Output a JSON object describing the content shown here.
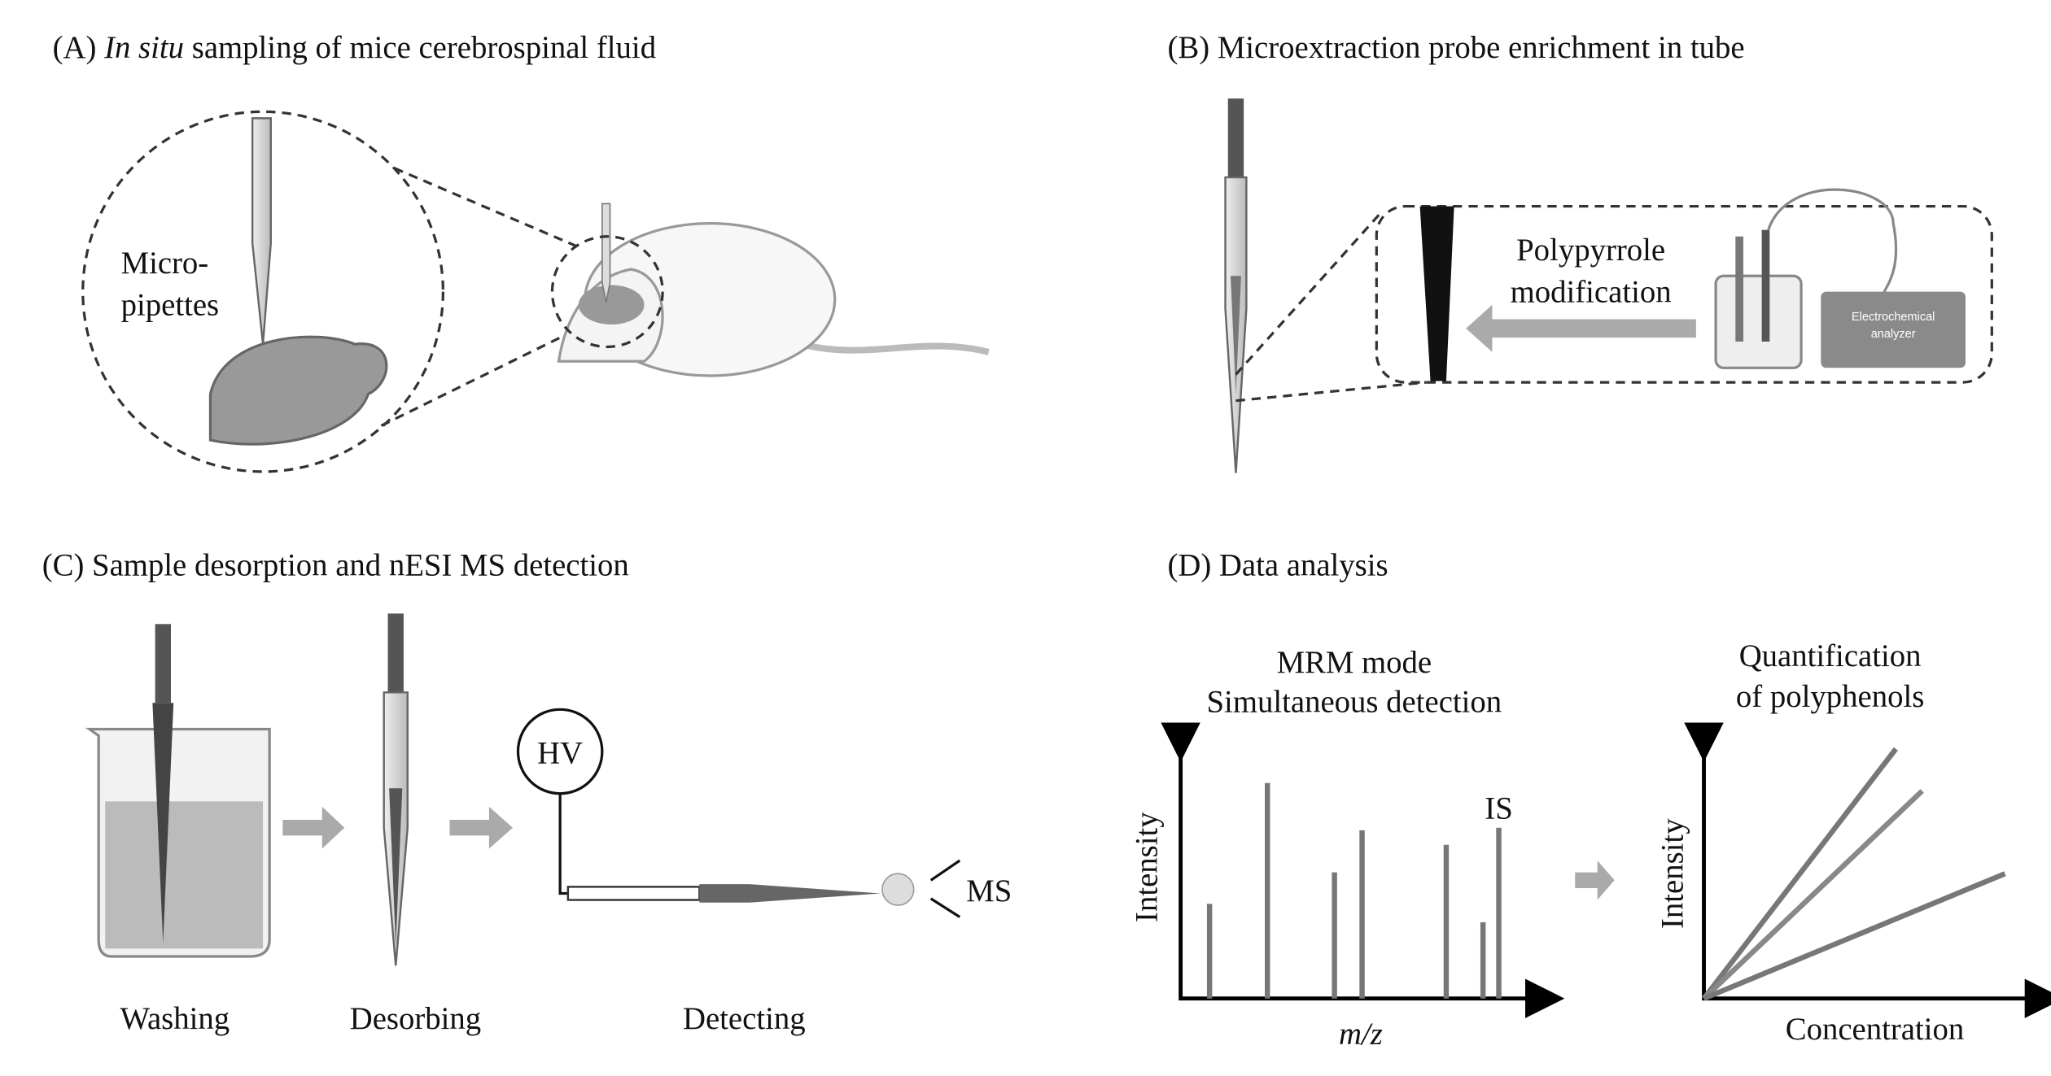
{
  "panel_a": {
    "title_prefix": "(A)",
    "title_italic": "In situ",
    "title_rest": "sampling of mice cerebrospinal fluid",
    "label_lines": [
      "Micro-",
      "pipettes"
    ]
  },
  "panel_b": {
    "title": "(B) Microextraction probe enrichment in tube",
    "arrow_lines": [
      "Polypyrrole",
      "modification"
    ],
    "device_lines": [
      "Electrochemical",
      "analyzer"
    ]
  },
  "panel_c": {
    "title": "(C) Sample desorption and nESI MS detection",
    "voltage": "HV",
    "detector": "MS",
    "steps": [
      "Washing",
      "Desorbing",
      "Detecting"
    ]
  },
  "panel_d": {
    "title": "(D) Data analysis",
    "left": {
      "title_lines": [
        "MRM mode",
        "Simultaneous detection"
      ],
      "y_label": "Intensity",
      "x_label": "m/z",
      "peak_label": "IS"
    },
    "right": {
      "title_lines": [
        "Quantification",
        "of polyphenols"
      ],
      "y_label": "Intensity",
      "x_label": "Concentration"
    }
  }
}
